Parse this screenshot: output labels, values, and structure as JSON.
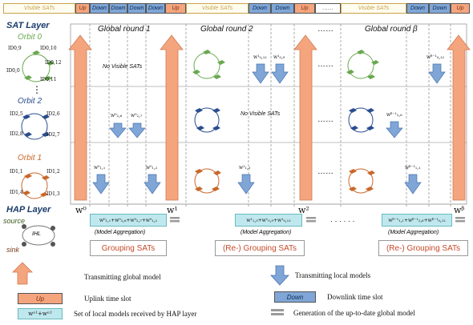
{
  "header_bar": {
    "visible_sats": "Visible SATs",
    "up": "Up",
    "down": "Down",
    "ellipsis": "……"
  },
  "left_panel": {
    "sat_layer": "SAT Layer",
    "orbit0": "Orbit 0",
    "orbit2": "Orbit 2",
    "orbit1": "Orbit 1",
    "dots": "⋮",
    "hap_layer": "HAP Layer",
    "source": "source",
    "sink": "sink",
    "ihl": "IHL",
    "orbit0_ids": [
      "ID0,0",
      "ID0,10",
      "ID0,12",
      "ID0,11",
      "ID0,9"
    ],
    "orbit2_ids": [
      "ID2,5",
      "ID2,6",
      "ID2,7",
      "ID2,8"
    ],
    "orbit1_ids": [
      "ID1,1",
      "ID1,2",
      "ID1,3",
      "ID1,4"
    ]
  },
  "rounds": {
    "round1": "Global round 1",
    "round2": "Global round 2",
    "roundb": "Global round β",
    "dots_a": "……",
    "dots_b": "……"
  },
  "notes": {
    "no_visible_1": "No Visible SATs",
    "no_visible_2": "No Visible SATs"
  },
  "global_models": {
    "w0": "w⁰",
    "w1": "w¹",
    "w2": "w²",
    "wb": "wᵝ"
  },
  "local_models": {
    "r1_a": "w⁰₂,₆",
    "r1_b": "w⁰₂,₇",
    "r1_c": "w⁰₁,₁",
    "r1_d": "w⁰₁,₂",
    "r2_a": "w¹₀,₁₂",
    "r2_b": "w¹₀,₉",
    "r2_c": "w¹₁,₃",
    "rb_a": "wᵝ⁻¹₀,₁₂",
    "rb_b": "wᵝ⁻¹₂,₆",
    "rb_c": "wᵝ⁻¹₁,₁"
  },
  "aggregation": {
    "set1": "w⁰₁,₁+w⁰₂,₆+w⁰₂,₇+w⁰₁,₂",
    "set2": "w¹₁,₃+w¹₀,₉+w¹₀,₁₂",
    "setb": "wᵝ⁻¹₁,₁+wᵝ⁻¹₂,₆+wᵝ⁻¹₀,₁₂",
    "label": "(Model Aggregation)",
    "dots": "· · · · · ·"
  },
  "grouping": {
    "g1": "Grouping SATs",
    "g2": "(Re-) Grouping SATs",
    "gb": "(Re-) Grouping SATs"
  },
  "legend": {
    "transmitting_global": "Transmitting global model",
    "transmitting_local": "Transmitting local models",
    "uplink": "Uplink time slot",
    "downlink": "Downlink time slot",
    "set_local": "Set of local models received by HAP layer",
    "generation": "Generation of the up-to-date global model",
    "up_tag": "Up",
    "down_tag": "Down",
    "set_tag": "wⁿ¹+wⁿ²"
  },
  "colors": {
    "up_fill": "#f4a57e",
    "down_fill": "#7fa6d6",
    "green_sat": "#6aa84f",
    "blue_sat": "#2a4d8f",
    "orange_sat": "#c9672a"
  }
}
